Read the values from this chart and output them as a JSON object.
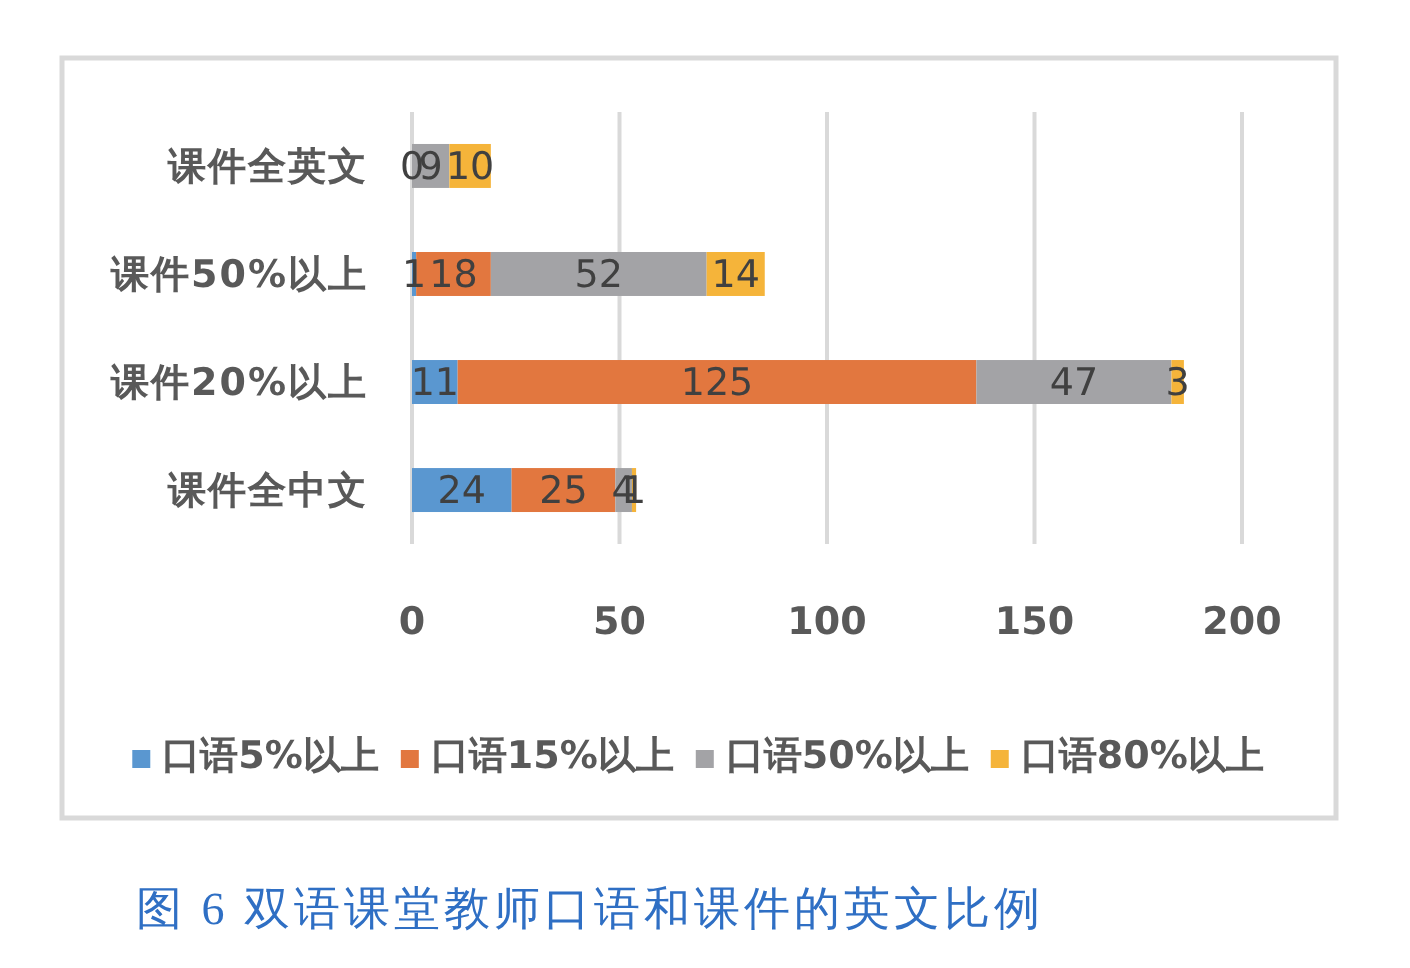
{
  "chart_data": {
    "type": "bar",
    "orientation": "horizontal",
    "stacked": true,
    "categories": [
      "课件全英文",
      "课件50%以上",
      "课件20%以上",
      "课件全中文"
    ],
    "series": [
      {
        "name": "口语5%以上",
        "color": "#5a97d0",
        "values": [
          0,
          1,
          11,
          24
        ],
        "value_labels": [
          "0",
          "1",
          "11",
          "24"
        ]
      },
      {
        "name": "口语15%以上",
        "color": "#e2773f",
        "values": [
          0,
          18,
          125,
          25
        ],
        "value_labels": [
          null,
          "18",
          "125",
          "25"
        ]
      },
      {
        "name": "口语50%以上",
        "color": "#a3a3a6",
        "values": [
          9,
          52,
          47,
          4
        ],
        "value_labels": [
          "9",
          "52",
          "47",
          "4"
        ]
      },
      {
        "name": "口语80%以上",
        "color": "#f5b43a",
        "values": [
          10,
          14,
          3,
          1
        ],
        "value_labels": [
          "10",
          "14",
          "3",
          "1"
        ]
      }
    ],
    "xlim": [
      0,
      200
    ],
    "xticks": [
      0,
      50,
      100,
      150,
      200
    ],
    "grid": "x",
    "legend": "bottom",
    "annotations": [
      "图 6 双语课堂教师口语和课件的英文比例"
    ]
  }
}
